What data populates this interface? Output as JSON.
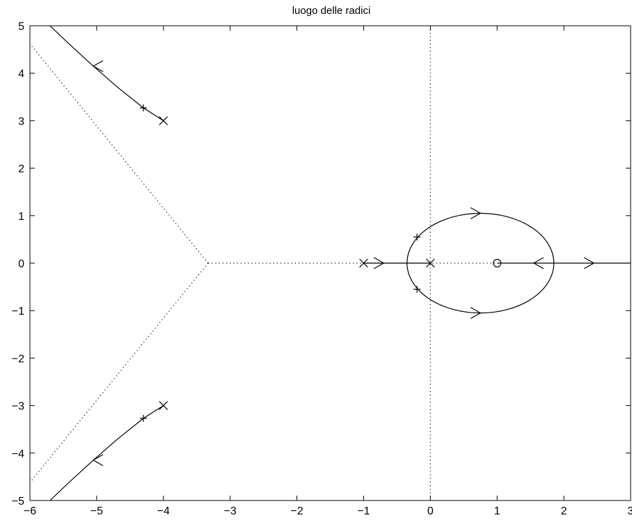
{
  "chart_data": {
    "type": "line",
    "title": "luogo delle radici",
    "xlabel": "",
    "ylabel": "",
    "xlim": [
      -6,
      3
    ],
    "ylim": [
      -5,
      5
    ],
    "x_ticks": [
      -6,
      -5,
      -4,
      -3,
      -2,
      -1,
      0,
      1,
      2,
      3
    ],
    "y_ticks": [
      -5,
      -4,
      -3,
      -2,
      -1,
      0,
      1,
      2,
      3,
      4,
      5
    ],
    "x_tick_labels": [
      "−6",
      "−5",
      "−4",
      "−3",
      "−2",
      "−1",
      "0",
      "1",
      "2",
      "3"
    ],
    "y_tick_labels": [
      "−5",
      "−4",
      "−3",
      "−2",
      "−1",
      "0",
      "1",
      "2",
      "3",
      "4",
      "5"
    ],
    "grid": false,
    "color": "#000000",
    "poles": [
      {
        "x": -4,
        "y": 3
      },
      {
        "x": -4,
        "y": -3
      },
      {
        "x": -1,
        "y": 0
      },
      {
        "x": 0,
        "y": 0
      }
    ],
    "zeros": [
      {
        "x": 1,
        "y": 0
      }
    ],
    "marked_points": [
      {
        "x": -4.3,
        "y": 3.27
      },
      {
        "x": -4.3,
        "y": -3.27
      },
      {
        "x": -0.2,
        "y": 0.55
      },
      {
        "x": -0.2,
        "y": -0.55
      }
    ],
    "asymptote_center": {
      "x": -3.33,
      "y": 0
    },
    "series": [
      {
        "style": "solid",
        "points": [
          [
            -4,
            3
          ],
          [
            -4.3,
            3.27
          ],
          [
            -4.7,
            3.72
          ],
          [
            -5.05,
            4.15
          ],
          [
            -5.4,
            4.6
          ],
          [
            -5.7,
            5
          ]
        ]
      },
      {
        "style": "solid",
        "points": [
          [
            -4,
            -3
          ],
          [
            -4.3,
            -3.27
          ],
          [
            -4.7,
            -3.72
          ],
          [
            -5.05,
            -4.15
          ],
          [
            -5.4,
            -4.6
          ],
          [
            -5.7,
            -5
          ]
        ]
      },
      {
        "style": "solid",
        "points": [
          [
            -1,
            0
          ],
          [
            -0.35,
            0
          ]
        ]
      },
      {
        "style": "solid",
        "points": [
          [
            0,
            0
          ],
          [
            -0.35,
            0
          ]
        ]
      },
      {
        "style": "solid",
        "points": [
          [
            1,
            0
          ],
          [
            3,
            0
          ]
        ]
      },
      {
        "style": "solid",
        "ellipse": {
          "cx": 0.75,
          "cy": 0,
          "rx": 1.1,
          "ry": 1.05
        }
      },
      {
        "style": "dotted",
        "points": [
          [
            -3.33,
            0
          ],
          [
            1,
            0
          ]
        ]
      },
      {
        "style": "dotted",
        "points": [
          [
            -3.33,
            0
          ],
          [
            -6,
            4.62
          ]
        ]
      },
      {
        "style": "dotted",
        "points": [
          [
            -3.33,
            0
          ],
          [
            -6,
            -4.62
          ]
        ]
      },
      {
        "style": "dotted",
        "points": [
          [
            0,
            -5
          ],
          [
            0,
            5
          ]
        ]
      }
    ],
    "arrows": [
      {
        "x": -5.05,
        "y": 4.15,
        "dir": "left"
      },
      {
        "x": -5.05,
        "y": -4.15,
        "dir": "left"
      },
      {
        "x": -0.7,
        "y": 0,
        "dir": "right"
      },
      {
        "x": 0.75,
        "y": 1.05,
        "dir": "right"
      },
      {
        "x": 0.75,
        "y": -1.05,
        "dir": "right"
      },
      {
        "x": 1.55,
        "y": 0,
        "dir": "left"
      },
      {
        "x": 2.45,
        "y": 0,
        "dir": "right"
      }
    ]
  }
}
